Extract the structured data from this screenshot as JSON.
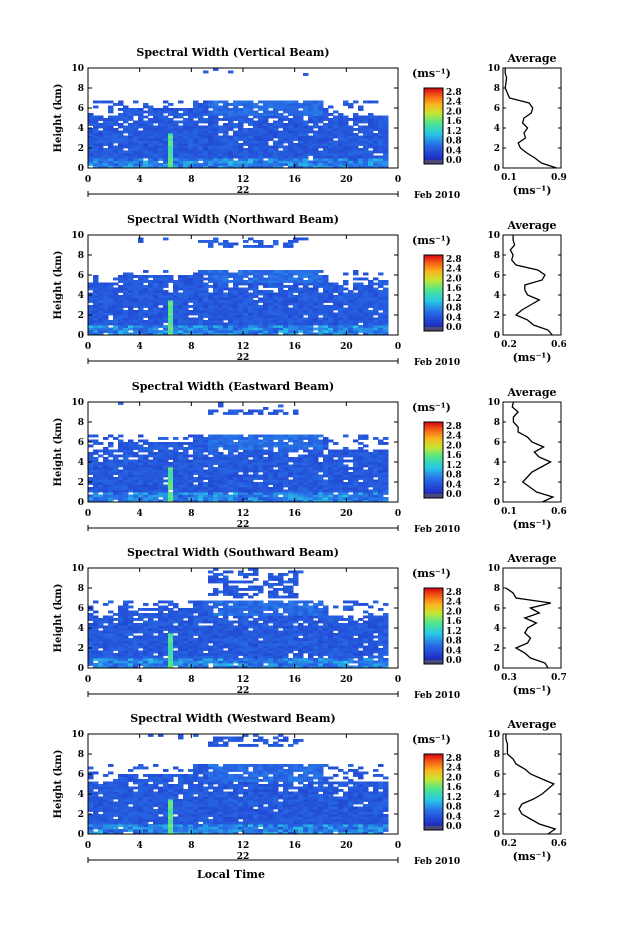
{
  "figure": {
    "month_label": "Feb 2010",
    "xlabel": "Local Time",
    "height_axis_label": "Height (km)",
    "unit_label": "(ms⁻¹)",
    "avg_title": "Average",
    "avg_unit_label": "(ms⁻¹)",
    "x_ticks": [
      "0",
      "4",
      "8",
      "12",
      "16",
      "20",
      "0"
    ],
    "y_ticks": [
      "0",
      "2",
      "4",
      "6",
      "8",
      "10"
    ],
    "colorbar_ticks": [
      "0.0",
      "0.4",
      "0.8",
      "1.2",
      "1.6",
      "2.0",
      "2.4",
      "2.8"
    ]
  },
  "chart_data": [
    {
      "type": "heatmap",
      "title": "Spectral Width (Vertical Beam)",
      "xlabel": "",
      "ylabel": "Height (km)",
      "date_label": "22",
      "xlim": [
        0,
        24
      ],
      "ylim": [
        0,
        10
      ],
      "top_km": 6.6,
      "band_lo": 6.6,
      "band_hi": 6.6,
      "bright_x": 6.3,
      "colorbar": {
        "min": 0.0,
        "max": 2.8,
        "ticks": [
          0.0,
          0.4,
          0.8,
          1.2,
          1.6,
          2.0,
          2.4,
          2.8
        ]
      },
      "average_profile": {
        "xlim": [
          0.1,
          0.9
        ],
        "x_ticks": [
          "0.1",
          "0.9"
        ],
        "height_km": [
          0.0,
          0.5,
          1.0,
          1.5,
          2.0,
          2.5,
          3.0,
          3.5,
          4.0,
          4.5,
          5.0,
          5.5,
          6.0,
          6.5,
          7.0,
          7.5,
          8.0,
          8.5,
          9.0,
          9.5,
          10.0
        ],
        "width_ms": [
          0.85,
          0.62,
          0.55,
          0.42,
          0.35,
          0.3,
          0.42,
          0.38,
          0.45,
          0.36,
          0.4,
          0.48,
          0.52,
          0.45,
          0.2,
          0.15,
          0.14,
          0.13,
          0.16,
          0.12,
          0.14
        ]
      }
    },
    {
      "type": "heatmap",
      "title": "Spectral Width (Northward Beam)",
      "xlabel": "",
      "ylabel": "Height (km)",
      "date_label": "22",
      "xlim": [
        0,
        24
      ],
      "ylim": [
        0,
        10
      ],
      "top_km": 6.3,
      "band_lo": 8.6,
      "band_hi": 9.3,
      "bright_x": 6.3,
      "colorbar": {
        "min": 0.0,
        "max": 2.8,
        "ticks": [
          0.0,
          0.4,
          0.8,
          1.2,
          1.6,
          2.0,
          2.4,
          2.8
        ]
      },
      "average_profile": {
        "xlim": [
          0.2,
          0.6
        ],
        "x_ticks": [
          "0.2",
          "0.6"
        ],
        "height_km": [
          0.0,
          0.5,
          1.0,
          1.5,
          2.0,
          2.5,
          3.0,
          3.5,
          4.0,
          4.5,
          5.0,
          5.5,
          6.0,
          6.5,
          7.0,
          7.5,
          8.0,
          8.5,
          9.0,
          9.5,
          10.0
        ],
        "width_ms": [
          0.55,
          0.5,
          0.42,
          0.36,
          0.3,
          0.32,
          0.4,
          0.44,
          0.38,
          0.34,
          0.36,
          0.46,
          0.5,
          0.43,
          0.3,
          0.25,
          0.28,
          0.24,
          0.29,
          0.26,
          0.28
        ]
      }
    },
    {
      "type": "heatmap",
      "title": "Spectral Width (Eastward Beam)",
      "xlabel": "",
      "ylabel": "Height (km)",
      "date_label": "22",
      "xlim": [
        0,
        24
      ],
      "ylim": [
        0,
        10
      ],
      "top_km": 6.6,
      "band_lo": 8.6,
      "band_hi": 9.0,
      "bright_x": 6.3,
      "colorbar": {
        "min": 0.0,
        "max": 2.8,
        "ticks": [
          0.0,
          0.4,
          0.8,
          1.2,
          1.6,
          2.0,
          2.4,
          2.8
        ]
      },
      "average_profile": {
        "xlim": [
          0.1,
          0.6
        ],
        "x_ticks": [
          "0.1",
          "0.6"
        ],
        "height_km": [
          0.0,
          0.5,
          1.0,
          1.5,
          2.0,
          2.5,
          3.0,
          3.5,
          4.0,
          4.5,
          5.0,
          5.5,
          6.0,
          6.5,
          7.0,
          7.5,
          8.0,
          8.5,
          9.0,
          9.5,
          10.0
        ],
        "width_ms": [
          0.45,
          0.52,
          0.4,
          0.32,
          0.28,
          0.3,
          0.36,
          0.42,
          0.52,
          0.4,
          0.38,
          0.44,
          0.36,
          0.3,
          0.24,
          0.22,
          0.2,
          0.18,
          0.24,
          0.17,
          0.2
        ]
      }
    },
    {
      "type": "heatmap",
      "title": "Spectral Width (Southward Beam)",
      "xlabel": "",
      "ylabel": "Height (km)",
      "date_label": "22",
      "xlim": [
        0,
        24
      ],
      "ylim": [
        0,
        10
      ],
      "top_km": 6.6,
      "band_lo": 7.0,
      "band_hi": 9.6,
      "bright_x": 6.3,
      "colorbar": {
        "min": 0.0,
        "max": 2.8,
        "ticks": [
          0.0,
          0.4,
          0.8,
          1.2,
          1.6,
          2.0,
          2.4,
          2.8
        ]
      },
      "average_profile": {
        "xlim": [
          0.3,
          0.7
        ],
        "x_ticks": [
          "0.3",
          "0.7"
        ],
        "height_km": [
          0.0,
          0.5,
          1.0,
          1.5,
          2.0,
          2.5,
          3.0,
          3.5,
          4.0,
          4.5,
          5.0,
          5.5,
          6.0,
          6.5,
          7.0,
          7.5,
          8.0
        ],
        "width_ms": [
          0.62,
          0.58,
          0.5,
          0.44,
          0.4,
          0.46,
          0.5,
          0.44,
          0.48,
          0.52,
          0.46,
          0.54,
          0.5,
          0.62,
          0.4,
          0.36,
          0.33
        ]
      }
    },
    {
      "type": "heatmap",
      "title": "Spectral Width (Westward Beam)",
      "xlabel": "Local Time",
      "ylabel": "Height (km)",
      "date_label": "22",
      "xlim": [
        0,
        24
      ],
      "ylim": [
        0,
        10
      ],
      "top_km": 6.8,
      "band_lo": 8.6,
      "band_hi": 9.6,
      "bright_x": 6.3,
      "colorbar": {
        "min": 0.0,
        "max": 2.8,
        "ticks": [
          0.0,
          0.4,
          0.8,
          1.2,
          1.6,
          2.0,
          2.4,
          2.8
        ]
      },
      "average_profile": {
        "xlim": [
          0.2,
          0.6
        ],
        "x_ticks": [
          "0.2",
          "0.6"
        ],
        "height_km": [
          0.0,
          0.5,
          1.0,
          1.5,
          2.0,
          2.5,
          3.0,
          3.5,
          4.0,
          4.5,
          5.0,
          5.5,
          6.0,
          6.5,
          7.0,
          7.5,
          8.0,
          8.5,
          9.0,
          9.5,
          10.0
        ],
        "width_ms": [
          0.52,
          0.55,
          0.46,
          0.38,
          0.34,
          0.3,
          0.34,
          0.4,
          0.48,
          0.5,
          0.56,
          0.46,
          0.4,
          0.34,
          0.3,
          0.26,
          0.24,
          0.22,
          0.24,
          0.21,
          0.23
        ]
      }
    }
  ]
}
